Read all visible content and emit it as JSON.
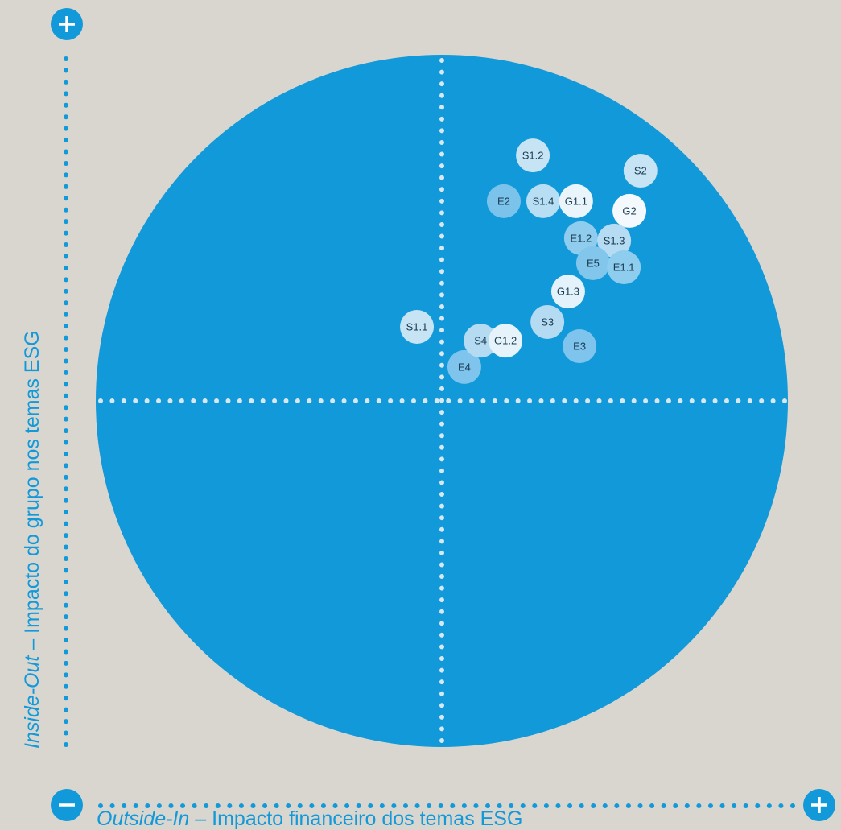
{
  "chart_data": {
    "type": "scatter",
    "y_label_italic": "Inside-Out",
    "y_label": " – Impacto do grupo nos temas ESG",
    "x_label_italic": "Outside-In",
    "x_label": " – Impacto financeiro dos temas ESG",
    "xlim": [
      -1,
      1
    ],
    "ylim": [
      -1,
      1
    ],
    "circle_color": "#1199d9",
    "points": [
      {
        "label": "E2",
        "x": 0.179,
        "y": 0.577,
        "color": "#7cc3eb"
      },
      {
        "label": "S1.2",
        "x": 0.263,
        "y": 0.709,
        "color": "#c7e4f5"
      },
      {
        "label": "S2",
        "x": 0.574,
        "y": 0.665,
        "color": "#c7e4f5"
      },
      {
        "label": "S1.4",
        "x": 0.293,
        "y": 0.577,
        "color": "#b8def4"
      },
      {
        "label": "G1.1",
        "x": 0.388,
        "y": 0.577,
        "color": "#e9f4fb"
      },
      {
        "label": "G2",
        "x": 0.542,
        "y": 0.549,
        "color": "#f4f9fd"
      },
      {
        "label": "E1.2",
        "x": 0.402,
        "y": 0.47,
        "color": "#8fccee"
      },
      {
        "label": "S1.3",
        "x": 0.498,
        "y": 0.463,
        "color": "#b5dcf3"
      },
      {
        "label": "E5",
        "x": 0.437,
        "y": 0.398,
        "color": "#82c6ec"
      },
      {
        "label": "E1.1",
        "x": 0.526,
        "y": 0.386,
        "color": "#8fcdee"
      },
      {
        "label": "G1.3",
        "x": 0.365,
        "y": 0.316,
        "color": "#e4f2fb"
      },
      {
        "label": "S3",
        "x": 0.305,
        "y": 0.228,
        "color": "#b4dbf2"
      },
      {
        "label": "S1.1",
        "x": -0.072,
        "y": 0.214,
        "color": "#c7e4f5"
      },
      {
        "label": "E3",
        "x": 0.398,
        "y": 0.158,
        "color": "#7fc4ec"
      },
      {
        "label": "E4",
        "x": 0.065,
        "y": 0.098,
        "color": "#7fc4ec"
      },
      {
        "label": "S4",
        "x": 0.112,
        "y": 0.174,
        "color": "#b4dbf2"
      },
      {
        "label": "G1.2",
        "x": 0.184,
        "y": 0.174,
        "color": "#e6f3fb"
      }
    ]
  }
}
